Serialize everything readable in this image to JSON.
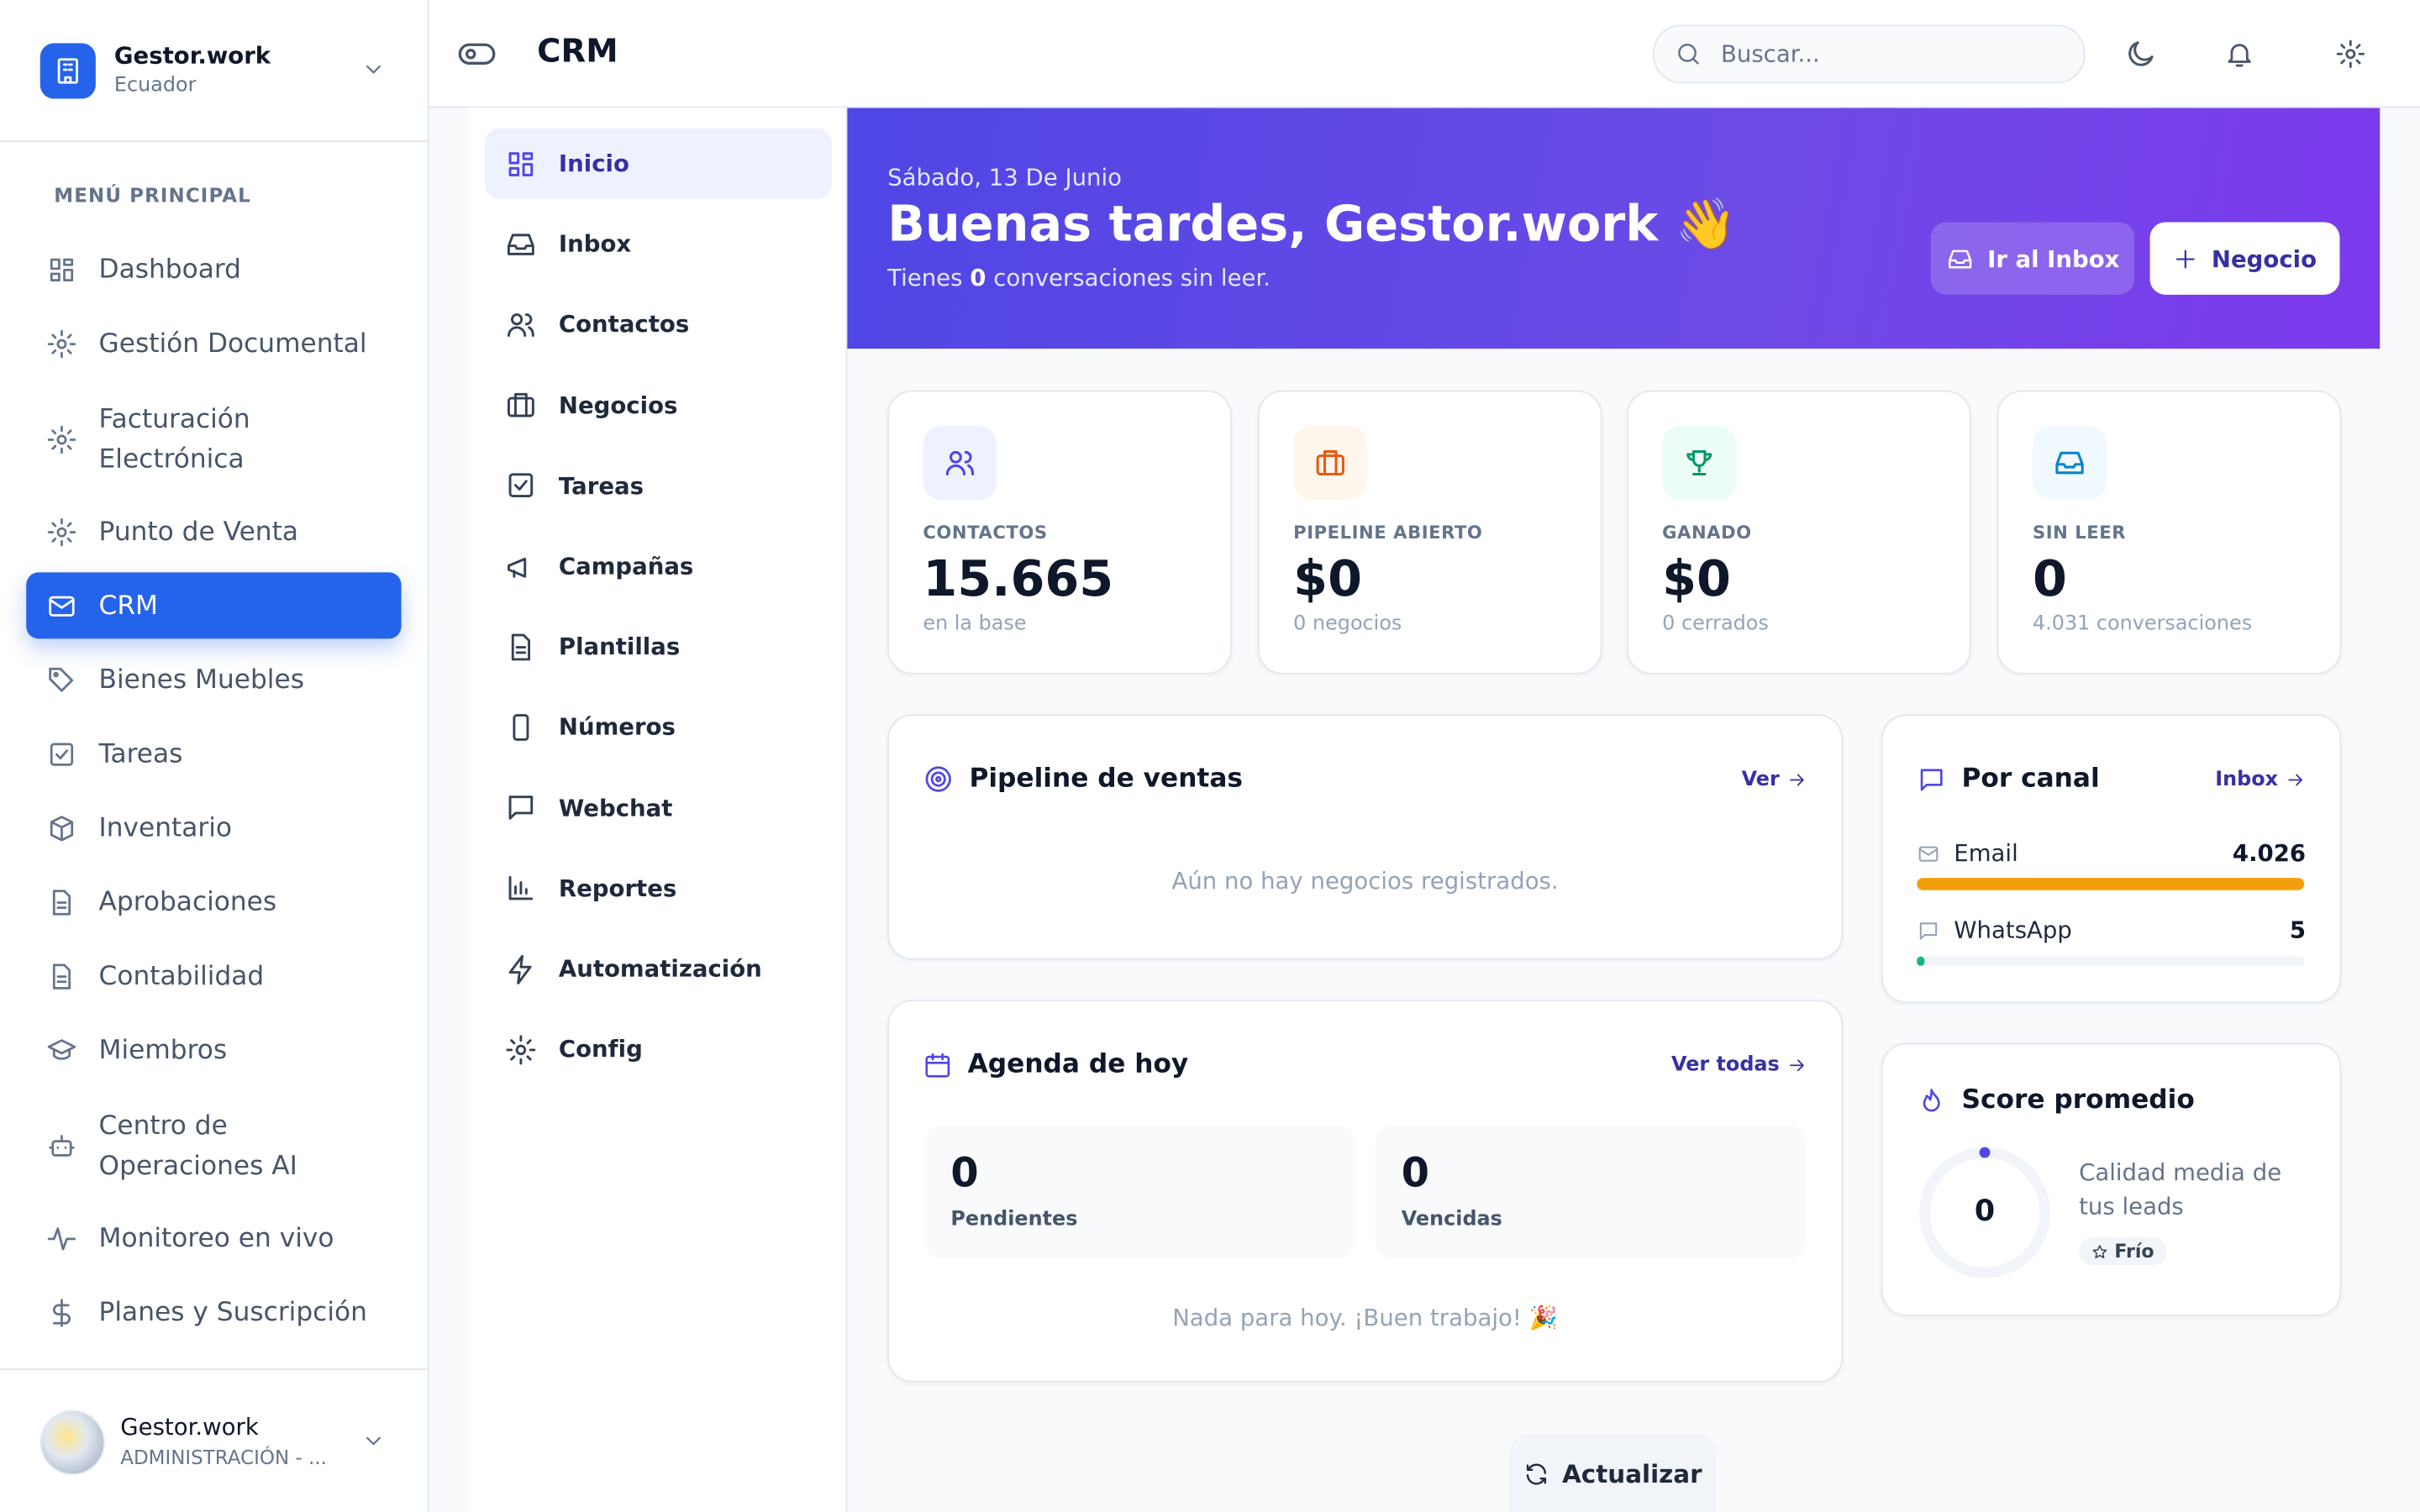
{
  "sidebar": {
    "org": "Gestor.work",
    "country": "Ecuador",
    "section": "MENÚ PRINCIPAL",
    "items": [
      "Dashboard",
      "Gestión Documental",
      "Facturación Electrónica",
      "Punto de Venta",
      "CRM",
      "Bienes Muebles",
      "Tareas",
      "Inventario",
      "Aprobaciones",
      "Contabilidad",
      "Miembros",
      "Centro de Operaciones AI",
      "Monitoreo en vivo",
      "Planes y Suscripción"
    ],
    "user": {
      "name": "Gestor.work",
      "role": "ADMINISTRACIÓN - ..."
    }
  },
  "topbar": {
    "title": "CRM",
    "search_placeholder": "Buscar..."
  },
  "submenu": [
    "Inicio",
    "Inbox",
    "Contactos",
    "Negocios",
    "Tareas",
    "Campañas",
    "Plantillas",
    "Números",
    "Webchat",
    "Reportes",
    "Automatización",
    "Config"
  ],
  "hero": {
    "date": "Sábado, 13 De Junio",
    "greeting": "Buenas tardes, Gestor.work 👋",
    "unread_prefix": "Tienes",
    "unread_count": "0",
    "unread_suffix": "conversaciones sin leer.",
    "inbox_button": "Ir al Inbox",
    "deal_button": "Negocio"
  },
  "stats": [
    {
      "label": "CONTACTOS",
      "value": "15.665",
      "note": "en la base"
    },
    {
      "label": "PIPELINE ABIERTO",
      "value": "$0",
      "note": "0 negocios"
    },
    {
      "label": "GANADO",
      "value": "$0",
      "note": "0 cerrados"
    },
    {
      "label": "SIN LEER",
      "value": "0",
      "note": "4.031 conversaciones"
    }
  ],
  "pipeline": {
    "title": "Pipeline de ventas",
    "link": "Ver",
    "empty": "Aún no hay negocios registrados."
  },
  "channels": {
    "title": "Por canal",
    "link": "Inbox",
    "items": [
      {
        "name": "Email",
        "value": "4.026"
      },
      {
        "name": "WhatsApp",
        "value": "5"
      }
    ]
  },
  "agenda": {
    "title": "Agenda de hoy",
    "link": "Ver todas",
    "boxes": [
      {
        "value": "0",
        "label": "Pendientes"
      },
      {
        "value": "0",
        "label": "Vencidas"
      }
    ],
    "empty": "Nada para hoy. ¡Buen trabajo! 🎉"
  },
  "score": {
    "title": "Score promedio",
    "value": "0",
    "description": "Calidad media de tus leads",
    "tag": "Frío"
  },
  "refresh": "Actualizar"
}
